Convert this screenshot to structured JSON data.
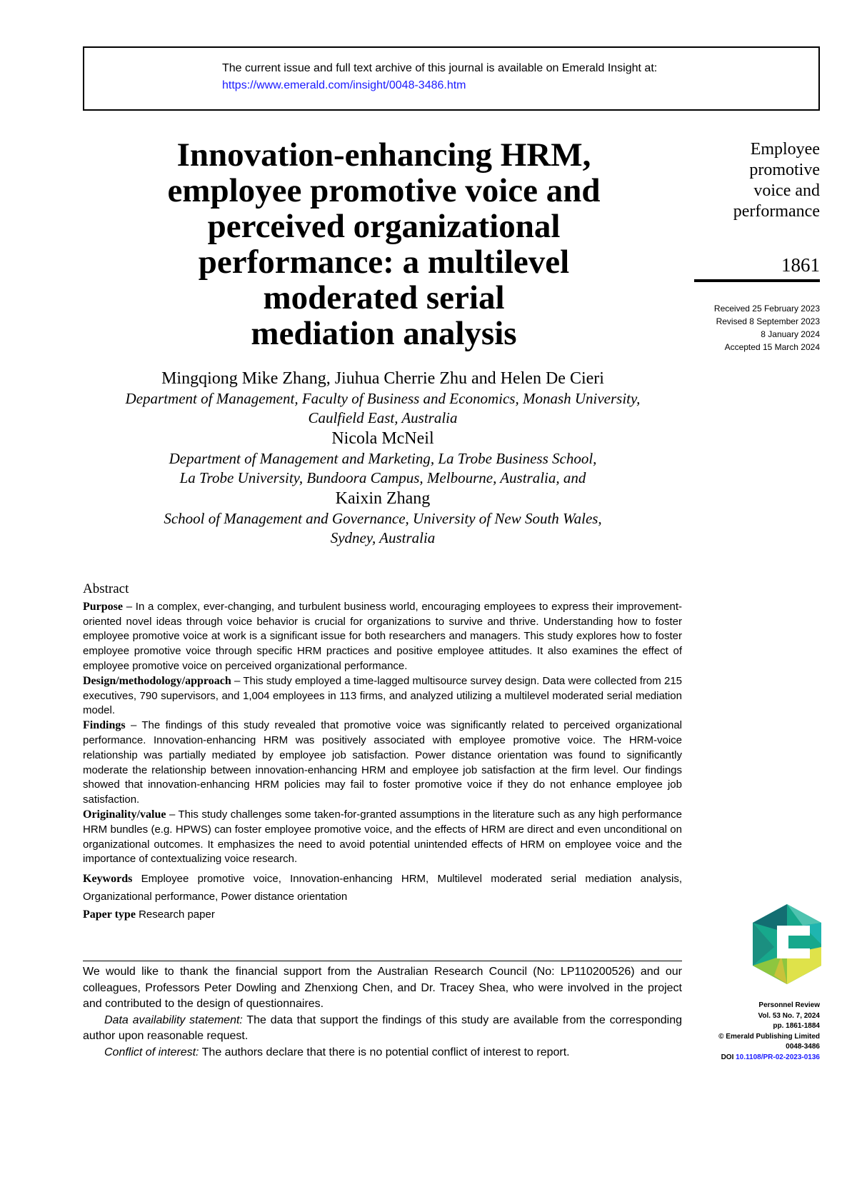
{
  "header_box": {
    "line1": "The current issue and full text archive of this journal is available on Emerald Insight at:",
    "url": "https://www.emerald.com/insight/0048-3486.htm"
  },
  "title_lines": [
    "Innovation-enhancing HRM,",
    "employee promotive voice and",
    "perceived organizational",
    "performance: a multilevel",
    "moderated serial",
    "mediation analysis"
  ],
  "running_head": [
    "Employee",
    "promotive",
    "voice and",
    "performance"
  ],
  "page_number": "1861",
  "dates": [
    "Received 25 February 2023",
    "Revised 8 September 2023",
    "8 January 2024",
    "Accepted 15 March 2024"
  ],
  "authors": [
    {
      "name": "Mingqiong Mike Zhang, Jiuhua Cherrie Zhu and Helen De Cieri",
      "affiliation": [
        "Department of Management, Faculty of Business and Economics, Monash University,",
        "Caulfield East, Australia"
      ]
    },
    {
      "name": "Nicola McNeil",
      "affiliation": [
        "Department of Management and Marketing, La Trobe Business School,",
        "La Trobe University, Bundoora Campus, Melbourne, Australia, and"
      ]
    },
    {
      "name": "Kaixin Zhang",
      "affiliation": [
        "School of Management and Governance, University of New South Wales,",
        "Sydney, Australia"
      ]
    }
  ],
  "abstract": {
    "heading": "Abstract",
    "sections": [
      {
        "label": "Purpose",
        "text": " – In a complex, ever-changing, and turbulent business world, encouraging employees to express their improvement-oriented novel ideas through voice behavior is crucial for organizations to survive and thrive. Understanding how to foster employee promotive voice at work is a significant issue for both researchers and managers. This study explores how to foster employee promotive voice through specific HRM practices and positive employee attitudes. It also examines the effect of employee promotive voice on perceived organizational performance."
      },
      {
        "label": "Design/methodology/approach",
        "text": " – This study employed a time-lagged multisource survey design. Data were collected from 215 executives, 790 supervisors, and 1,004 employees in 113 firms, and analyzed utilizing a multilevel moderated serial mediation model."
      },
      {
        "label": "Findings",
        "text": " – The findings of this study revealed that promotive voice was significantly related to perceived organizational performance. Innovation-enhancing HRM was positively associated with employee promotive voice. The HRM-voice relationship was partially mediated by employee job satisfaction. Power distance orientation was found to significantly moderate the relationship between innovation-enhancing HRM and employee job satisfaction at the firm level. Our findings showed that innovation-enhancing HRM policies may fail to foster promotive voice if they do not enhance employee job satisfaction."
      },
      {
        "label": "Originality/value",
        "text": " – This study challenges some taken-for-granted assumptions in the literature such as any high performance HRM bundles (e.g. HPWS) can foster employee promotive voice, and the effects of HRM are direct and even unconditional on organizational outcomes. It emphasizes the need to avoid potential unintended effects of HRM on employee voice and the importance of contextualizing voice research."
      }
    ],
    "keywords_label": "Keywords",
    "keywords": " Employee promotive voice, Innovation-enhancing HRM, Multilevel moderated serial mediation analysis, Organizational performance, Power distance orientation",
    "paper_type_label": "Paper type",
    "paper_type": " Research paper"
  },
  "footnote": {
    "acknowledgement": "We would like to thank the financial support from the Australian Research Council (No: LP110200526) and our colleagues, Professors Peter Dowling and Zhenxiong Chen, and Dr. Tracey Shea, who were involved in the project and contributed to the design of questionnaires.",
    "data_label": "Data availability statement:",
    "data_text": " The data that support the findings of this study are available from the corresponding author upon reasonable request.",
    "conflict_label": "Conflict of interest:",
    "conflict_text": " The authors declare that there is no potential conflict of interest to report."
  },
  "journal_info": {
    "journal": "Personnel Review",
    "volume": "Vol. 53 No. 7, 2024",
    "pages": "pp. 1861-1884",
    "publisher": "© Emerald Publishing Limited",
    "issn": "0048-3486",
    "doi_label": "DOI",
    "doi": "10.1108/PR-02-2023-0136",
    "logo_text": "Emerald",
    "logo_colors": [
      "#136e72",
      "#17a88c",
      "#4fc3b0",
      "#8dc63f",
      "#dfe24a"
    ]
  }
}
